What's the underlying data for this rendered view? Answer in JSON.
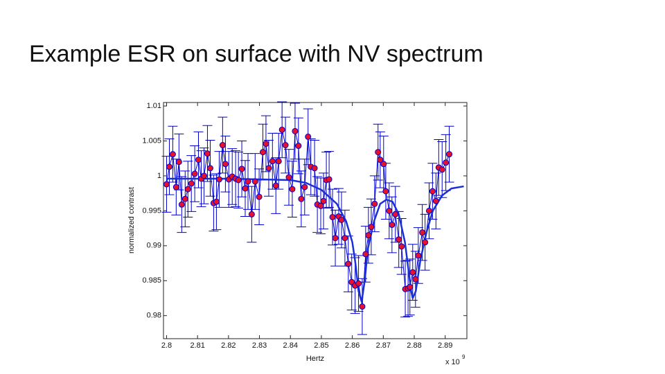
{
  "slide_title": "Example ESR on surface with NV spectrum",
  "chart_data": {
    "type": "scatter",
    "xlabel": "Hertz",
    "ylabel": "normalized contrast",
    "x_multiplier": "x 10",
    "x_multiplier_exponent": "9",
    "xlim": [
      2.799,
      2.897
    ],
    "ylim": [
      0.9767,
      1.0105
    ],
    "xticks": [
      2.8,
      2.81,
      2.82,
      2.83,
      2.84,
      2.85,
      2.86,
      2.87,
      2.88,
      2.89
    ],
    "yticks": [
      0.98,
      0.985,
      0.99,
      0.995,
      1,
      1.005,
      1.01
    ],
    "point_color": "#e8102a",
    "line_color": "#0000cc",
    "fit_color": "#1a2fd6",
    "x": [
      2.8,
      2.8009,
      2.802,
      2.8031,
      2.804,
      2.8049,
      2.806,
      2.8069,
      2.808,
      2.8091,
      2.8103,
      2.8112,
      2.8121,
      2.8132,
      2.8141,
      2.8152,
      2.8161,
      2.817,
      2.8181,
      2.819,
      2.8201,
      2.8212,
      2.8223,
      2.8232,
      2.8243,
      2.8254,
      2.8263,
      2.8275,
      2.8286,
      2.8299,
      2.8311,
      2.8321,
      2.833,
      2.8342,
      2.8353,
      2.8362,
      2.8373,
      2.8384,
      2.8395,
      2.8406,
      2.8415,
      2.8426,
      2.8435,
      2.8446,
      2.8457,
      2.8466,
      2.8478,
      2.8487,
      2.8498,
      2.8507,
      2.8516,
      2.8525,
      2.8536,
      2.8545,
      2.8556,
      2.8565,
      2.8576,
      2.8587,
      2.8598,
      2.8609,
      2.862,
      2.8632,
      2.8643,
      2.8652,
      2.8661,
      2.8672,
      2.8683,
      2.869,
      2.8701,
      2.8708,
      2.8719,
      2.8728,
      2.8739,
      2.875,
      2.8759,
      2.8771,
      2.878,
      2.8786,
      2.8795,
      2.8804,
      2.8813,
      2.8826,
      2.8835,
      2.8848,
      2.8859,
      2.887,
      2.8879,
      2.889,
      2.8902,
      2.8913
    ],
    "values": [
      0.9988,
      1.0013,
      1.0031,
      0.9984,
      1.002,
      0.9959,
      0.9967,
      0.9981,
      0.9989,
      1.0003,
      1.0023,
      0.9996,
      1.0,
      1.0032,
      1.0011,
      0.9961,
      0.9963,
      0.9995,
      1.0044,
      1.0017,
      0.9995,
      0.9999,
      0.9996,
      0.9994,
      1.001,
      0.9982,
      0.9992,
      0.9945,
      0.9992,
      0.997,
      1.0034,
      1.0046,
      1.0011,
      1.0021,
      0.9986,
      1.0021,
      1.0066,
      1.0044,
      0.9998,
      0.9981,
      1.0064,
      1.0043,
      0.9967,
      0.9984,
      1.0056,
      1.0013,
      1.0011,
      0.9959,
      0.9957,
      0.9964,
      0.9994,
      0.9995,
      0.9941,
      0.9911,
      0.9942,
      0.9937,
      0.9911,
      0.9874,
      0.9848,
      0.9843,
      0.9846,
      0.9813,
      0.9888,
      0.9915,
      0.9927,
      0.996,
      1.0034,
      1.0023,
      1.0017,
      0.9978,
      0.995,
      0.993,
      0.9945,
      0.9909,
      0.9899,
      0.9838,
      0.9839,
      0.9841,
      0.9862,
      0.9852,
      0.9886,
      0.9919,
      0.9905,
      0.995,
      0.9978,
      0.9964,
      1.0012,
      1.0009,
      1.0019,
      1.0031
    ],
    "errors": [
      0.004,
      0.004,
      0.004,
      0.004,
      0.004,
      0.004,
      0.004,
      0.004,
      0.004,
      0.004,
      0.004,
      0.004,
      0.004,
      0.004,
      0.004,
      0.004,
      0.004,
      0.004,
      0.004,
      0.004,
      0.004,
      0.004,
      0.004,
      0.004,
      0.004,
      0.004,
      0.004,
      0.004,
      0.004,
      0.004,
      0.004,
      0.004,
      0.004,
      0.004,
      0.004,
      0.004,
      0.004,
      0.004,
      0.004,
      0.004,
      0.004,
      0.004,
      0.004,
      0.004,
      0.004,
      0.004,
      0.004,
      0.004,
      0.004,
      0.004,
      0.004,
      0.004,
      0.004,
      0.004,
      0.004,
      0.004,
      0.004,
      0.004,
      0.004,
      0.004,
      0.004,
      0.004,
      0.004,
      0.004,
      0.004,
      0.004,
      0.004,
      0.004,
      0.004,
      0.004,
      0.004,
      0.004,
      0.004,
      0.004,
      0.004,
      0.004,
      0.004,
      0.004,
      0.004,
      0.004,
      0.004,
      0.004,
      0.004,
      0.004,
      0.004,
      0.004,
      0.004,
      0.004,
      0.004,
      0.004
    ],
    "fit": {
      "x": [
        2.8,
        2.81,
        2.82,
        2.83,
        2.84,
        2.845,
        2.85,
        2.855,
        2.858,
        2.86,
        2.861,
        2.862,
        2.863,
        2.864,
        2.865,
        2.867,
        2.869,
        2.871,
        2.873,
        2.875,
        2.877,
        2.878,
        2.879,
        2.8795,
        2.8805,
        2.882,
        2.884,
        2.886,
        2.889,
        2.892,
        2.896
      ],
      "values": [
        0.9996,
        0.9996,
        0.9996,
        0.9995,
        0.9994,
        0.999,
        0.998,
        0.996,
        0.9935,
        0.9905,
        0.9875,
        0.9835,
        0.982,
        0.985,
        0.9895,
        0.9935,
        0.996,
        0.9966,
        0.9963,
        0.9945,
        0.9905,
        0.987,
        0.9835,
        0.9825,
        0.9835,
        0.988,
        0.992,
        0.995,
        0.9972,
        0.9982,
        0.9985
      ]
    }
  }
}
